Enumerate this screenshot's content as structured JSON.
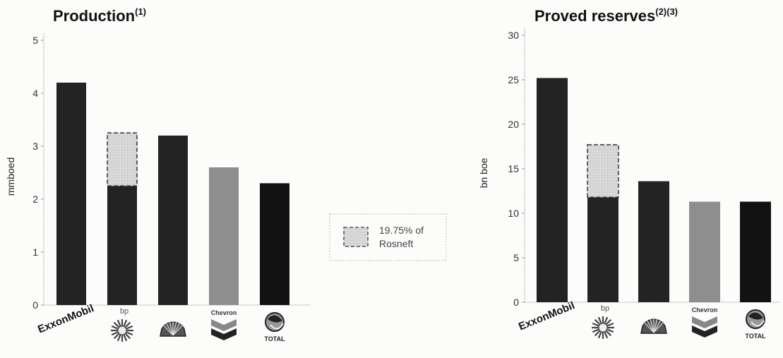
{
  "colors": {
    "background": "#fcfcfb",
    "bar_dark": "#232323",
    "bar_black": "#121212",
    "bar_chevron": "#8e8e8e",
    "rosneft_fill": "#dcdcdc",
    "axis": "#999999"
  },
  "company_logos": [
    {
      "company": "ExxonMobil",
      "icon": "exxonmobil-logo",
      "label": "ExxonMobil"
    },
    {
      "company": "bp",
      "icon": "bp-helios-logo",
      "label": "bp"
    },
    {
      "company": "Shell",
      "icon": "shell-pecten-logo",
      "label": ""
    },
    {
      "company": "Chevron",
      "icon": "chevron-logo",
      "label": "Chevron"
    },
    {
      "company": "Total",
      "icon": "total-logo",
      "label": "TOTAL"
    }
  ],
  "legend": {
    "label_line1": "19.75% of",
    "label_line2": "Rosneft",
    "icon": "dashed-box-icon"
  },
  "chart_data": [
    {
      "type": "bar",
      "title": "Production",
      "title_sup": "(1)",
      "ylabel": "mmboed",
      "xlabel": "",
      "ylim": [
        0,
        5
      ],
      "yticks": [
        0,
        1,
        2,
        3,
        4,
        5
      ],
      "categories": [
        "ExxonMobil",
        "bp",
        "Shell",
        "Chevron",
        "Total"
      ],
      "values": [
        4.2,
        2.25,
        3.2,
        2.6,
        2.3
      ],
      "rosneft_share": [
        0,
        1.0,
        0,
        0,
        0
      ]
    },
    {
      "type": "bar",
      "title": "Proved reserves",
      "title_sup": "(2)(3)",
      "ylabel": "bn boe",
      "xlabel": "",
      "ylim": [
        0,
        30
      ],
      "yticks": [
        0,
        5,
        10,
        15,
        20,
        25,
        30
      ],
      "categories": [
        "ExxonMobil",
        "bp",
        "Shell",
        "Chevron",
        "Total"
      ],
      "values": [
        25.2,
        11.8,
        13.6,
        11.3,
        11.3
      ],
      "rosneft_share": [
        0,
        5.9,
        0,
        0,
        0
      ]
    }
  ]
}
